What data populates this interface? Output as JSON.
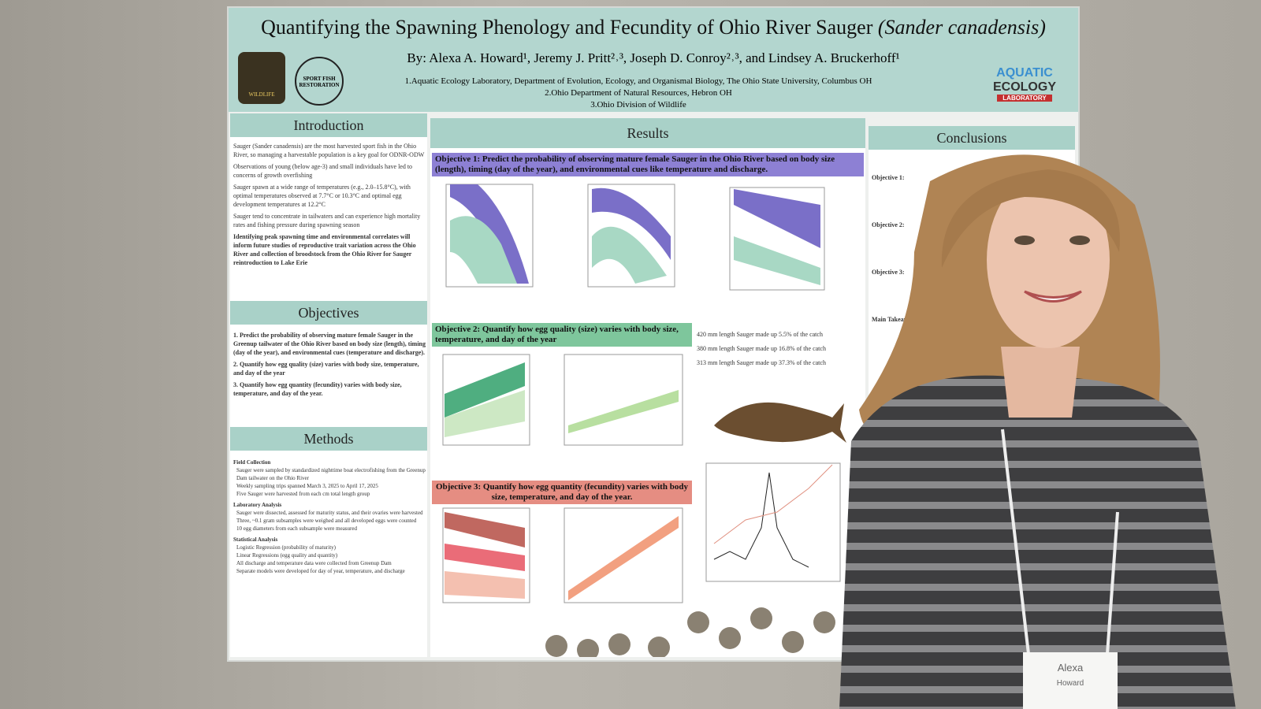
{
  "poster": {
    "title": "Quantifying the Spawning Phenology and Fecundity of Ohio River Sauger",
    "title_species": "(Sander canadensis)",
    "authors": "By: Alexa A. Howard¹, Jeremy J. Pritt²˒³, Joseph D. Conroy²˒³, and Lindsey A. Bruckerhoff¹",
    "affiliations": [
      "1.Aquatic Ecology Laboratory, Department of Evolution, Ecology, and Organismal Biology, The Ohio State University, Columbus OH",
      "2.Ohio Department of Natural Resources, Hebron OH",
      "3.Ohio Division of Wildlife"
    ],
    "logos": {
      "left": "WILDLIFE",
      "middle": "SPORT FISH RESTORATION",
      "right_1": "AQUATIC",
      "right_2": "ECOLOGY",
      "right_3": "LABORATORY"
    },
    "introduction": {
      "heading": "Introduction",
      "bullets": [
        "Sauger (Sander canadensis) are the most harvested sport fish in the Ohio River, so managing a harvestable population is a key goal for ODNR-ODW",
        "Observations of young (below age-3) and small individuals have led to concerns of growth overfishing",
        "Sauger spawn at a wide range of temperatures (e.g., 2.0–15.8°C), with optimal temperatures observed at 7.7°C or 10.3°C and optimal egg development temperatures at 12.2°C",
        "Sauger tend to concentrate in tailwaters and can experience high mortality rates and fishing pressure during spawning season",
        "Identifying peak spawning time and environmental correlates will inform future studies of reproductive trait variation across the Ohio River and collection of broodstock from the Ohio River for Sauger reintroduction to Lake Erie"
      ]
    },
    "objectives": {
      "heading": "Objectives",
      "items": [
        "1. Predict the probability of observing mature female Sauger in the Greenup tailwater of the Ohio River based on body size (length), timing (day of the year), and environmental cues (temperature and discharge).",
        "2. Quantify how egg quality (size) varies with body size, temperature, and day of the year",
        "3. Quantify how egg quantity (fecundity) varies with body size, temperature, and day of the year."
      ]
    },
    "methods": {
      "heading": "Methods",
      "sections": [
        {
          "name": "Field Collection",
          "lines": [
            "Sauger were sampled by standardized nighttime boat electrofishing from the Greenup Dam tailwater on the Ohio River",
            "Weekly sampling trips spanned March 3, 2025 to April 17, 2025",
            "Five Sauger were harvested from each cm total length group"
          ]
        },
        {
          "name": "Laboratory Analysis",
          "lines": [
            "Sauger were dissected, assessed for maturity status, and their ovaries were harvested",
            "Three, ~0.1 gram subsamples were weighed and all developed eggs were counted",
            "10 egg diameters from each subsample were measured"
          ]
        },
        {
          "name": "Statistical Analysis",
          "lines": [
            "Logistic Regression (probability of maturity)",
            "Linear Regressions (egg quality and quantity)",
            "All discharge and temperature data were collected from Greenup Dam",
            "Separate models were developed for day of year, temperature, and discharge"
          ]
        }
      ]
    },
    "results": {
      "heading": "Results",
      "objective_1": "Objective 1: Predict the probability of observing mature female Sauger in the Ohio River based on body size (length), timing (day of the year), and environmental cues like temperature and discharge.",
      "objective_2": "Objective 2: Quantify how egg quality (size) varies with body size, temperature, and day of the year",
      "objective_3": "Objective 3: Quantify how egg quantity (fecundity) varies with body size, temperature, and day of the year.",
      "catch": [
        "420 mm length Sauger made up 5.5% of the catch",
        "380 mm length Sauger made up 16.8% of the catch",
        "313 mm length Sauger made up 37.3% of the catch"
      ]
    },
    "conclusions": {
      "heading": "Conclusions",
      "subheadings": [
        "Objective 1:",
        "Objective 2:",
        "Objective 3:",
        "Main Takeaways"
      ]
    }
  },
  "badge": {
    "first": "Alexa",
    "last": "Howard"
  }
}
